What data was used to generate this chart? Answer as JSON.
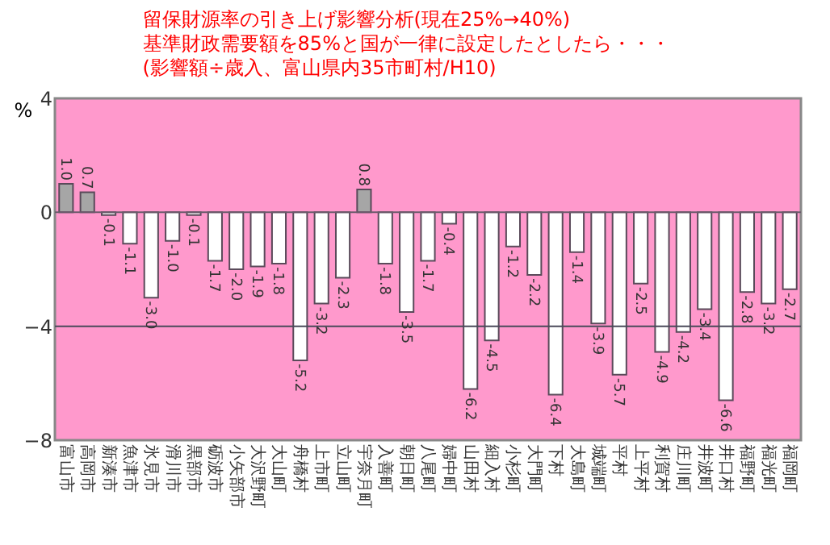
{
  "chart_data": {
    "type": "bar",
    "title": [
      "留保財源率の引き上げ影響分析(現在25%→40%)",
      "基準財政需要額を85%と国が一律に設定したとしたら・・・",
      "(影響額÷歳入、富山県内35市町村/H10)"
    ],
    "ylabel": "%",
    "categories": [
      "富山市",
      "高岡市",
      "新湊市",
      "魚津市",
      "氷見市",
      "滑川市",
      "黒部市",
      "砺波市",
      "小矢部市",
      "大沢野町",
      "大山町",
      "舟橋村",
      "上市町",
      "立山町",
      "宇奈月町",
      "入善町",
      "朝日町",
      "八尾町",
      "婦中町",
      "山田村",
      "細入村",
      "小杉町",
      "大門町",
      "下村",
      "大島町",
      "城端町",
      "平村",
      "上平村",
      "利賀村",
      "庄川町",
      "井波町",
      "井口村",
      "福野町",
      "福光町",
      "福岡町"
    ],
    "values": [
      1.0,
      0.7,
      -0.1,
      -1.1,
      -3.0,
      -1.0,
      -0.1,
      -1.7,
      -2.0,
      -1.9,
      -1.8,
      -5.2,
      -3.2,
      -2.3,
      0.8,
      -1.8,
      -3.5,
      -1.7,
      -0.4,
      -6.2,
      -4.5,
      -1.2,
      -2.2,
      -6.4,
      -1.4,
      -3.9,
      -5.7,
      -2.5,
      -4.9,
      -4.2,
      -3.4,
      -6.6,
      -2.8,
      -3.2,
      -2.7
    ],
    "colors": [
      "#a6a6a6",
      "#a6a6a6",
      "#ffffff",
      "#ffffff",
      "#ffffff",
      "#ffffff",
      "#ffffff",
      "#ffffff",
      "#ffffff",
      "#ffffff",
      "#ffffff",
      "#ffffff",
      "#ffffff",
      "#ffffff",
      "#a6a6a6",
      "#ffffff",
      "#ffffff",
      "#ffffff",
      "#ffffff",
      "#ffffff",
      "#ffffff",
      "#ffffff",
      "#ffffff",
      "#ffffff",
      "#ffffff",
      "#ffffff",
      "#ffffff",
      "#ffffff",
      "#ffffff",
      "#ffffff",
      "#ffffff",
      "#ffffff",
      "#ffffff",
      "#ffffff",
      "#ffffff"
    ],
    "ylim": [
      -8,
      4
    ],
    "yticks": [
      -8,
      -4,
      0,
      4
    ],
    "ref_lines": [
      {
        "axis": "y",
        "value": 0,
        "color": "#6b5a6b"
      },
      {
        "axis": "y",
        "value": -4,
        "color": "#4a4a5a"
      }
    ],
    "value_labels": [
      "1.0",
      "0.7",
      "-0.1",
      "-1.1",
      "-3.0",
      "-1.0",
      "-0.1",
      "-1.7",
      "-2.0",
      "-1.9",
      "-1.8",
      "-5.2",
      "-3.2",
      "-2.3",
      "0.8",
      "-1.8",
      "-3.5",
      "-1.7",
      "-0.4",
      "-6.2",
      "-4.5",
      "-1.2",
      "-2.2",
      "-6.4",
      "-1.4",
      "-3.9",
      "-5.7",
      "-2.5",
      "-4.9",
      "-4.2",
      "-3.4",
      "-6.6",
      "-2.8",
      "-3.2",
      "-2.7"
    ]
  }
}
